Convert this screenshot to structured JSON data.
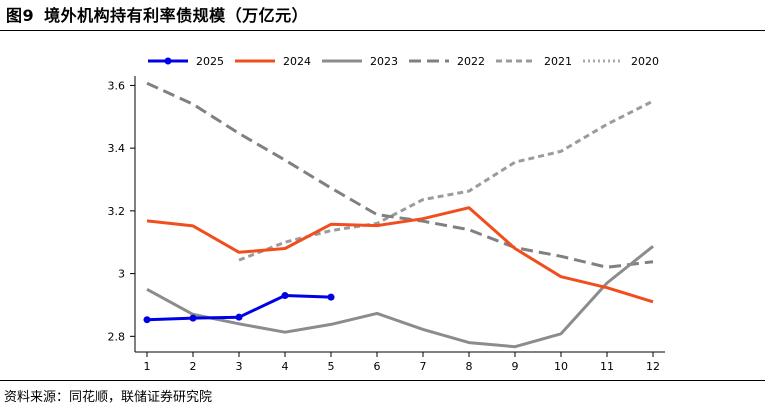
{
  "figure": {
    "label": "图9",
    "title": "境外机构持有利率债规模（万亿元）",
    "source": "资料来源：同花顺，联储证券研究院"
  },
  "chart_data": {
    "type": "line",
    "title": "境外机构持有利率债规模（万亿元）",
    "xlabel": "",
    "ylabel": "",
    "x": [
      1,
      2,
      3,
      4,
      5,
      6,
      7,
      8,
      9,
      10,
      11,
      12
    ],
    "xticks": [
      "1",
      "2",
      "3",
      "4",
      "5",
      "6",
      "7",
      "8",
      "9",
      "10",
      "11",
      "12"
    ],
    "xlim": [
      1,
      12
    ],
    "yticks": [
      2.8,
      3.0,
      3.2,
      3.4,
      3.6
    ],
    "ytick_labels": [
      "2.8",
      "3",
      "3.2",
      "3.4",
      "3.6"
    ],
    "ylim": [
      2.75,
      3.63
    ],
    "legend_position": "top",
    "series": [
      {
        "name": "2025",
        "color": "#0000e6",
        "style": "solid-markers",
        "values": [
          2.853,
          2.858,
          2.861,
          2.93,
          2.925,
          null,
          null,
          null,
          null,
          null,
          null,
          null
        ]
      },
      {
        "name": "2024",
        "color": "#f04e1e",
        "style": "solid",
        "values": [
          3.168,
          3.152,
          3.068,
          3.08,
          3.157,
          3.153,
          3.175,
          3.21,
          3.08,
          2.99,
          2.955,
          2.91
        ]
      },
      {
        "name": "2023",
        "color": "#8c8c8c",
        "style": "solid",
        "values": [
          2.95,
          2.87,
          2.84,
          2.813,
          2.838,
          2.873,
          2.822,
          2.78,
          2.767,
          2.808,
          2.97,
          3.087
        ]
      },
      {
        "name": "2022",
        "color": "#808080",
        "style": "dash",
        "values": [
          3.607,
          3.54,
          3.447,
          3.362,
          3.273,
          3.188,
          3.167,
          3.14,
          3.083,
          3.055,
          3.02,
          3.038
        ]
      },
      {
        "name": "2021",
        "color": "#9b9b9b",
        "style": "short-dash",
        "values": [
          null,
          null,
          3.043,
          3.1,
          3.137,
          3.16,
          3.236,
          3.263,
          3.355,
          3.39,
          3.476,
          3.55
        ]
      },
      {
        "name": "2020",
        "color": "#aaaaaa",
        "style": "dotted",
        "values": [
          null,
          null,
          null,
          null,
          null,
          null,
          null,
          null,
          null,
          null,
          null,
          null
        ]
      }
    ]
  },
  "colors": {
    "axis": "#000000",
    "text": "#000000"
  }
}
